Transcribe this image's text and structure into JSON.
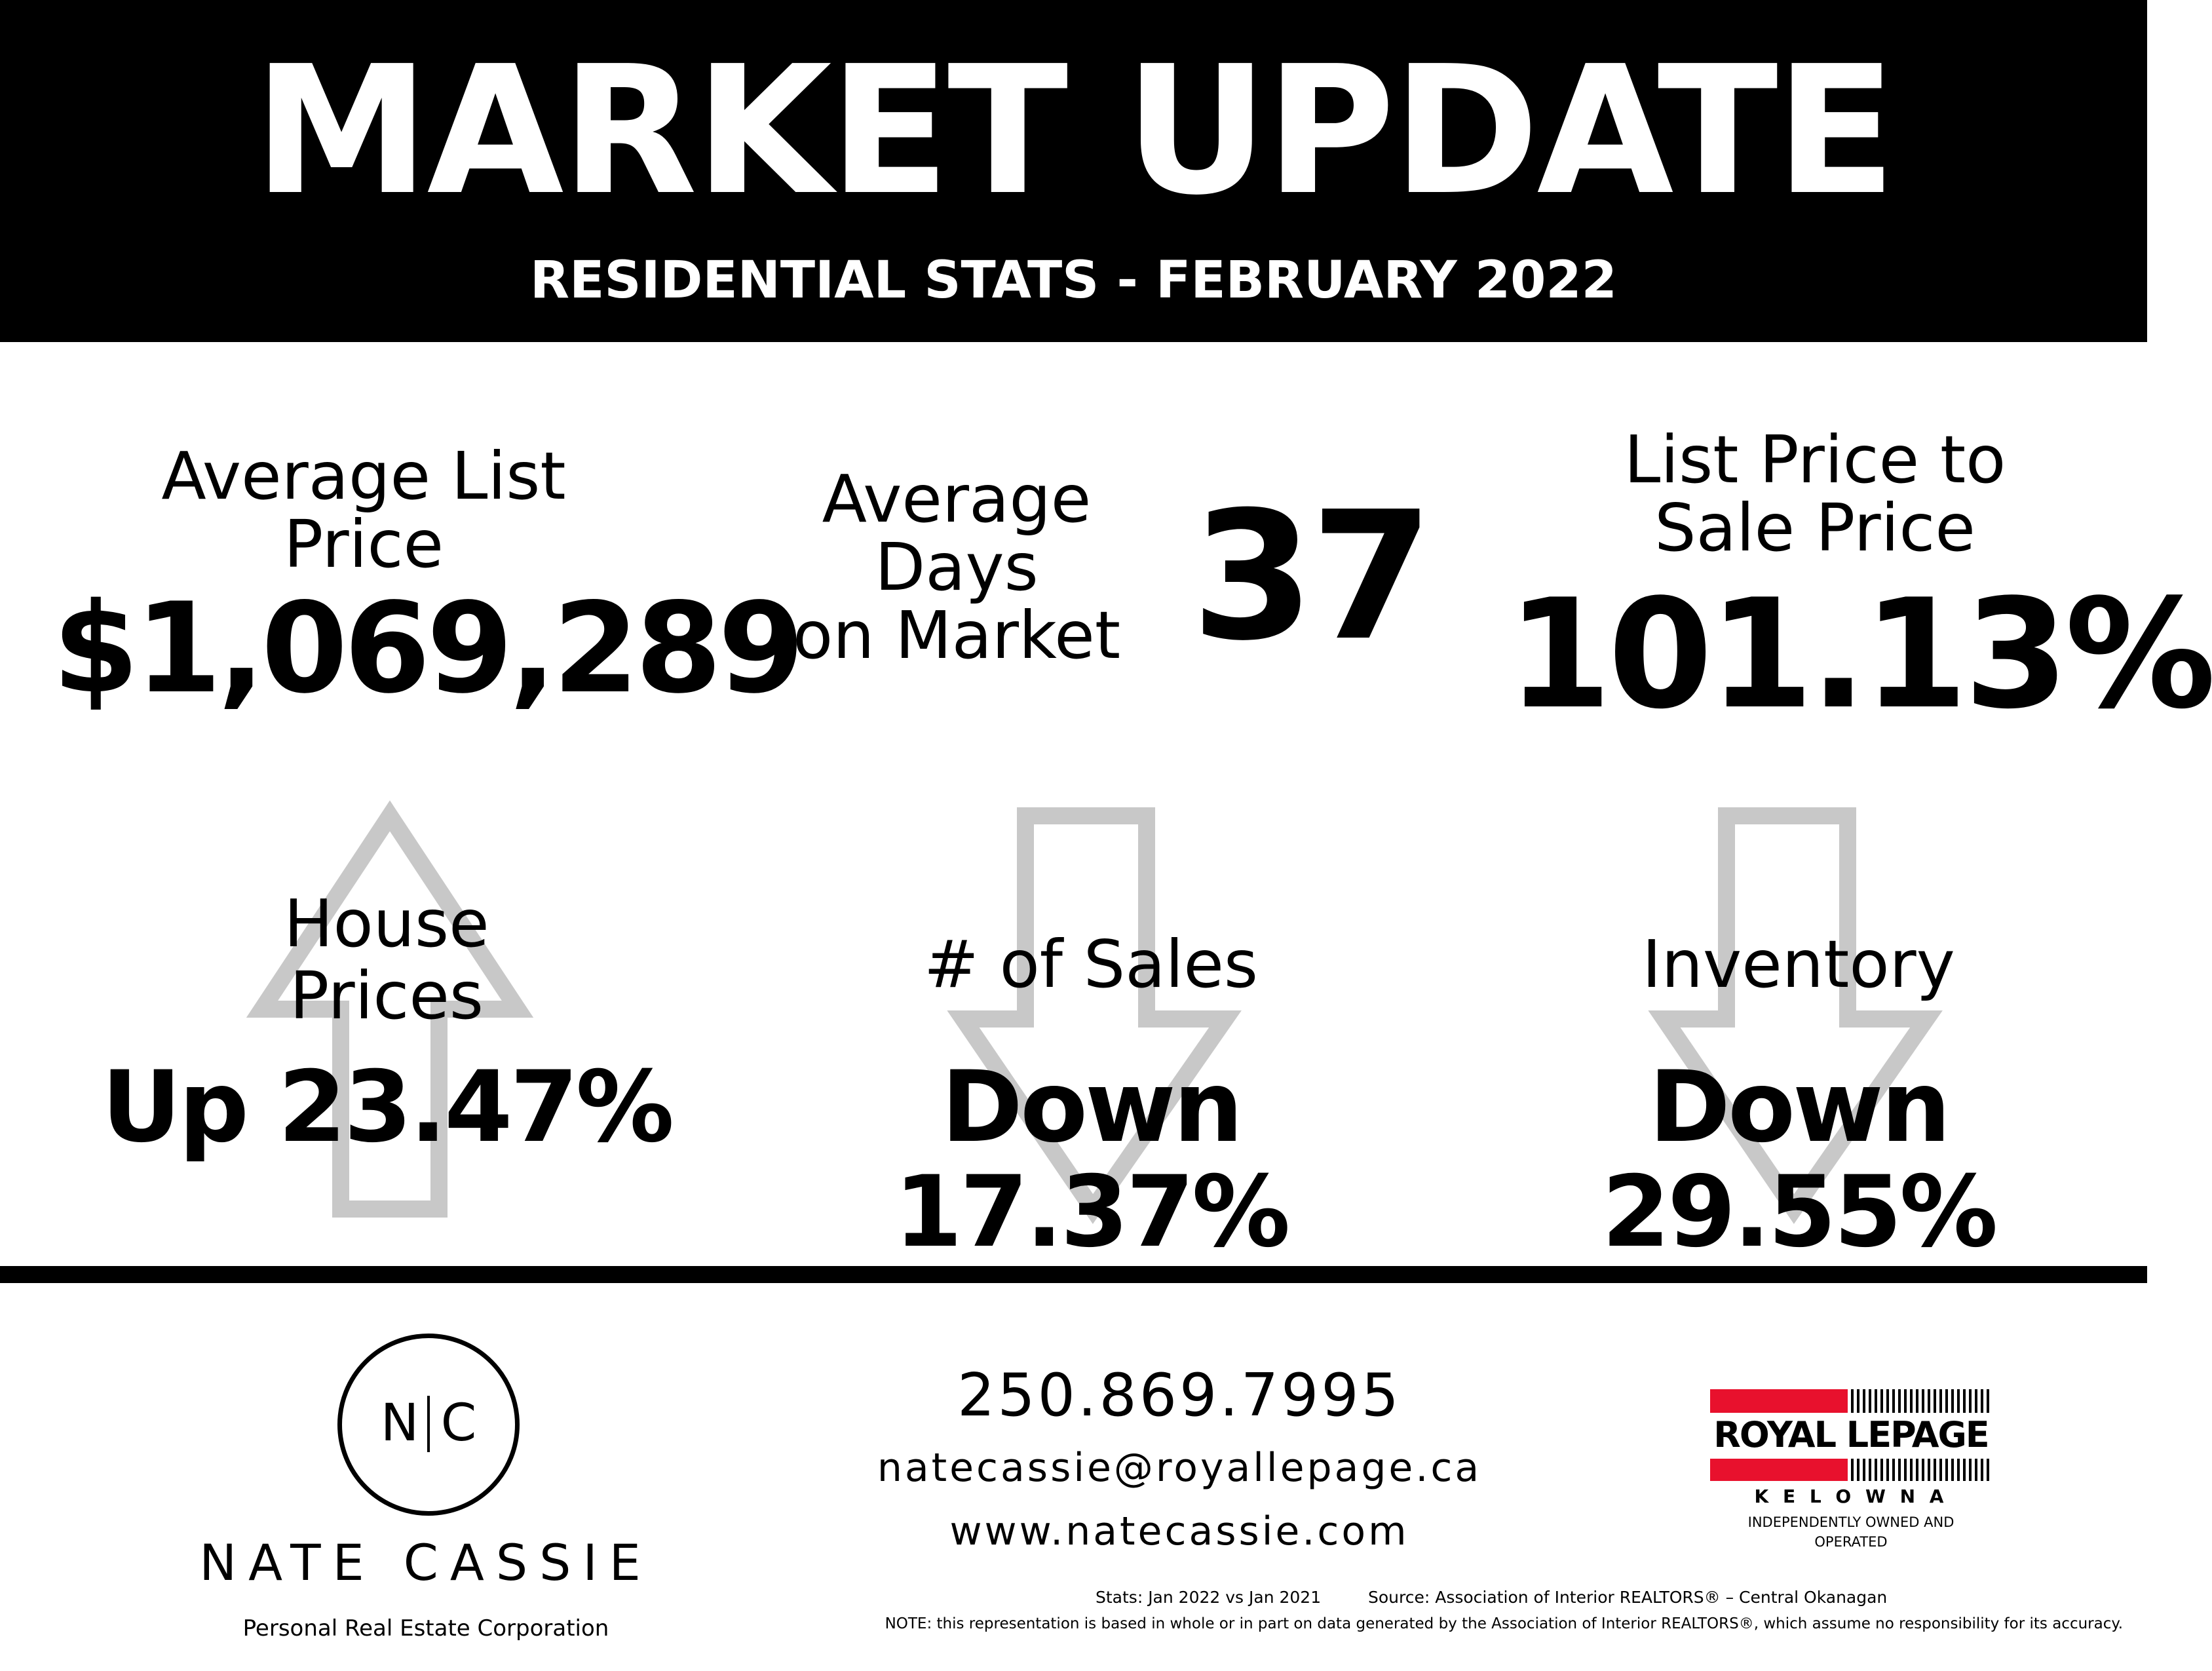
{
  "header": {
    "title": "MARKET UPDATE",
    "subtitle": "RESIDENTIAL STATS - FEBRUARY 2022"
  },
  "stats_top": {
    "avg_list_price": {
      "label_line1": "Average List",
      "label_line2": "Price",
      "value": "$1,069,289"
    },
    "avg_days": {
      "label_line1": "Average",
      "label_line2": "Days",
      "label_line3": "on Market",
      "value": "37"
    },
    "list_to_sale": {
      "label_line1": "List Price to",
      "label_line2": "Sale Price",
      "value": "101.13%"
    }
  },
  "stats_bottom": {
    "house_prices": {
      "label_line1": "House",
      "label_line2": "Prices",
      "value": "Up 23.47%",
      "direction": "up-arrow-icon"
    },
    "sales": {
      "label": "# of Sales",
      "value": "Down 17.37%",
      "direction": "down-arrow-icon"
    },
    "inventory": {
      "label": "Inventory",
      "value": "Down 29.55%",
      "direction": "down-arrow-icon"
    }
  },
  "colors": {
    "header_bg": "#000000",
    "arrow_outline": "#c8c8c8",
    "brand_red": "#e8112d"
  },
  "footer": {
    "logo_initial_left": "N",
    "logo_initial_right": "C",
    "agent_name": "NATE CASSIE",
    "agent_corp": "Personal Real Estate Corporation",
    "phone": "250.869.7995",
    "email": "natecassie@royallepage.ca",
    "website": "www.natecassie.com",
    "brokerage_name": "ROYAL LEPAGE",
    "brokerage_city": "K E L O W N A",
    "brokerage_tagline": "INDEPENDENTLY OWNED AND OPERATED",
    "stats_note": "Stats: Jan 2022 vs Jan 2021",
    "source_note": "Source: Association of Interior REALTORS® – Central Okanagan",
    "disclaimer": "NOTE: this representation is based in whole or in part on data generated by the Association of Interior REALTORS®, which assume no responsibility for its accuracy."
  }
}
